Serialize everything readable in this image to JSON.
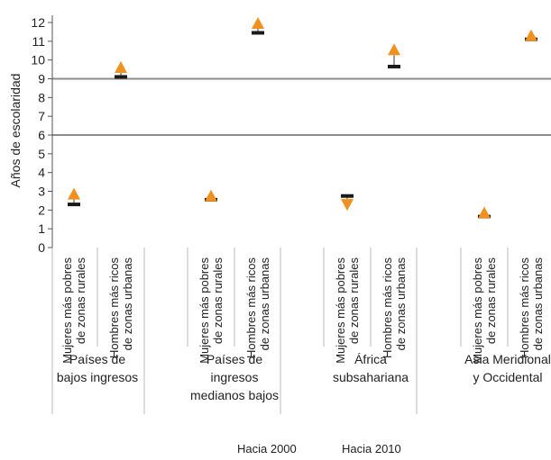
{
  "chart_data": {
    "type": "scatter",
    "title": "",
    "ylabel": "Años de escolaridad",
    "xlabel": "",
    "ylim": [
      0,
      12
    ],
    "yticks": [
      0,
      1,
      2,
      3,
      4,
      5,
      6,
      7,
      8,
      9,
      10,
      11,
      12
    ],
    "reference_lines": [
      6,
      9
    ],
    "groups": [
      {
        "label": "Países de bajos ingresos",
        "categories": [
          {
            "label": "Mujeres más pobres de zonas rurales",
            "y2000": 2.3,
            "y2010": 2.85
          },
          {
            "label": "Hombres más ricos de zonas urbanas",
            "y2000": 9.1,
            "y2010": 9.6
          }
        ]
      },
      {
        "label": "Países de ingresos medianos bajos",
        "categories": [
          {
            "label": "Mujeres más pobres de zonas rurales",
            "y2000": 2.55,
            "y2010": 2.75
          },
          {
            "label": "Hombres más ricos de zonas urbanas",
            "y2000": 11.45,
            "y2010": 11.95
          }
        ]
      },
      {
        "label": "África subsahariana",
        "categories": [
          {
            "label": "Mujeres más pobres de zonas rurales",
            "y2000": 2.75,
            "y2010": 2.3
          },
          {
            "label": "Hombres más ricos de zonas urbanas",
            "y2000": 9.65,
            "y2010": 10.55
          }
        ]
      },
      {
        "label": "Asia Meridional y Occidental",
        "categories": [
          {
            "label": "Mujeres más pobres de zonas rurales",
            "y2000": 1.65,
            "y2010": 1.85
          },
          {
            "label": "Hombres más ricos de zonas urbanas",
            "y2000": 11.1,
            "y2010": 11.3
          }
        ]
      }
    ],
    "series": [
      {
        "name": "Hacia 2000",
        "marker": "dash",
        "color": "#1a1a1a"
      },
      {
        "name": "Hacia 2010",
        "marker": "triangle",
        "color": "#f0901e"
      }
    ],
    "colors": {
      "axis": "#555555",
      "refline": "#8c8c8c",
      "connector": "#7a7a7a"
    }
  }
}
